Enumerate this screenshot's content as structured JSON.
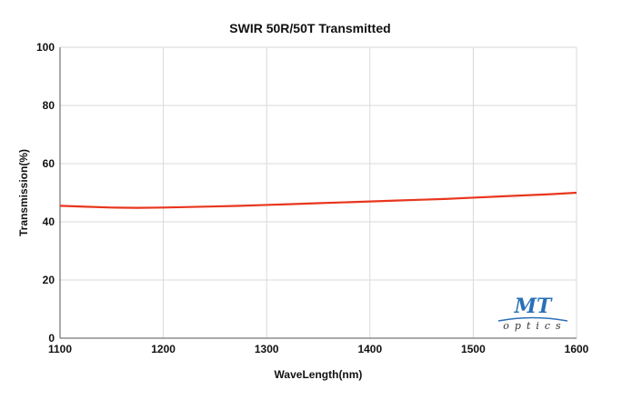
{
  "chart_data": {
    "type": "line",
    "title": "SWIR 50R/50T Transmitted",
    "xlabel": "WaveLength(nm)",
    "ylabel": "Transmission(%)",
    "xlim": [
      1100,
      1600
    ],
    "ylim": [
      0,
      100
    ],
    "x_ticks": [
      1100,
      1200,
      1300,
      1400,
      1500,
      1600
    ],
    "y_ticks": [
      0,
      20,
      40,
      60,
      80,
      100
    ],
    "grid": true,
    "series": [
      {
        "color": "#e8361e",
        "x": [
          1100,
          1125,
          1150,
          1175,
          1200,
          1225,
          1250,
          1275,
          1300,
          1325,
          1350,
          1375,
          1400,
          1425,
          1450,
          1475,
          1500,
          1525,
          1550,
          1575,
          1600
        ],
        "y": [
          45.5,
          45.2,
          44.9,
          44.8,
          44.9,
          45.1,
          45.3,
          45.5,
          45.8,
          46.1,
          46.4,
          46.7,
          47.0,
          47.3,
          47.6,
          47.9,
          48.3,
          48.7,
          49.1,
          49.5,
          50.0
        ]
      }
    ]
  },
  "logo": {
    "text": "MT",
    "subtext": "optics",
    "color": "#2a6fb8"
  }
}
